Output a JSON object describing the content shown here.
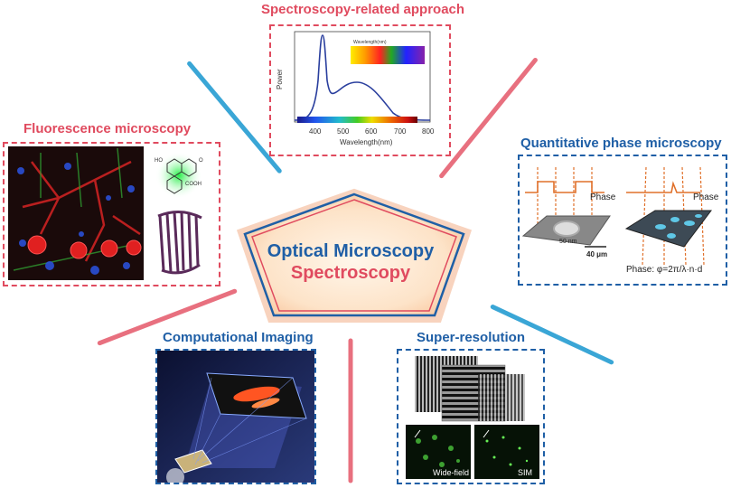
{
  "center": {
    "line1": "Optical Microscopy",
    "line2": "Spectroscopy"
  },
  "panels": {
    "spectroscopy": {
      "title": "Spectroscopy-related approach",
      "y_label": "Power",
      "x_label": "Wavelength(nm)",
      "legend_label": "Wavelength(nm)",
      "ticks": [
        "400",
        "500",
        "600",
        "700",
        "800"
      ]
    },
    "fluorescence": {
      "title": "Fluorescence microscopy",
      "molecule_labels": [
        "HO",
        "O",
        "COOH"
      ]
    },
    "qpm": {
      "title": "Quantitative phase microscopy",
      "phase_label_left": "Phase",
      "phase_label_right": "Phase",
      "scale_small": "50 nm",
      "scale_bar": "40 μm",
      "formula": "Phase: φ=2π/λ·n·d"
    },
    "computational": {
      "title": "Computational Imaging"
    },
    "superres": {
      "title": "Super-resolution",
      "label_left": "Wide-field",
      "label_right": "SIM"
    }
  },
  "colors": {
    "red_accent": "#e04b5f",
    "blue_accent": "#1f5fa6",
    "red_connector": "#e8707f",
    "blue_connector": "#3aa6d6"
  }
}
